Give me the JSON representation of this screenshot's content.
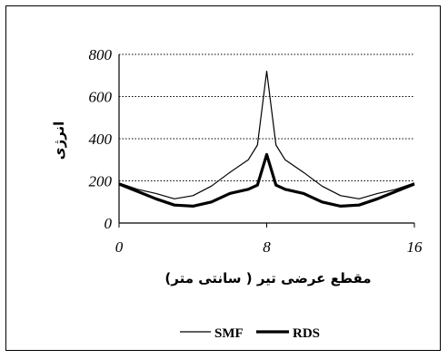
{
  "chart_data": {
    "type": "line",
    "title": "",
    "xlabel": "مقطع عرضی تیر ( سانتی متر)",
    "ylabel": "انرژی",
    "xlim": [
      0,
      16
    ],
    "ylim": [
      0,
      800
    ],
    "xticks": [
      "0",
      "8",
      "16"
    ],
    "yticks": [
      "0",
      "200",
      "400",
      "600",
      "800"
    ],
    "grid": "horizontal-dotted",
    "legend": "bottom",
    "series": [
      {
        "name": "SMF",
        "color": "#000000",
        "line": "thin",
        "x": [
          0,
          1,
          2,
          3,
          4,
          5,
          6,
          7,
          7.5,
          8,
          8.5,
          9,
          10,
          11,
          12,
          13,
          14,
          15,
          16
        ],
        "y": [
          190,
          160,
          140,
          115,
          130,
          175,
          240,
          300,
          370,
          720,
          370,
          300,
          240,
          175,
          130,
          115,
          140,
          160,
          190
        ]
      },
      {
        "name": "RDS",
        "color": "#000000",
        "line": "thick",
        "x": [
          0,
          1,
          2,
          3,
          4,
          5,
          6,
          7,
          7.5,
          8,
          8.5,
          9,
          10,
          11,
          12,
          13,
          14,
          15,
          16
        ],
        "y": [
          185,
          150,
          115,
          85,
          80,
          100,
          140,
          160,
          180,
          325,
          180,
          160,
          140,
          100,
          80,
          85,
          115,
          150,
          185
        ]
      }
    ]
  }
}
